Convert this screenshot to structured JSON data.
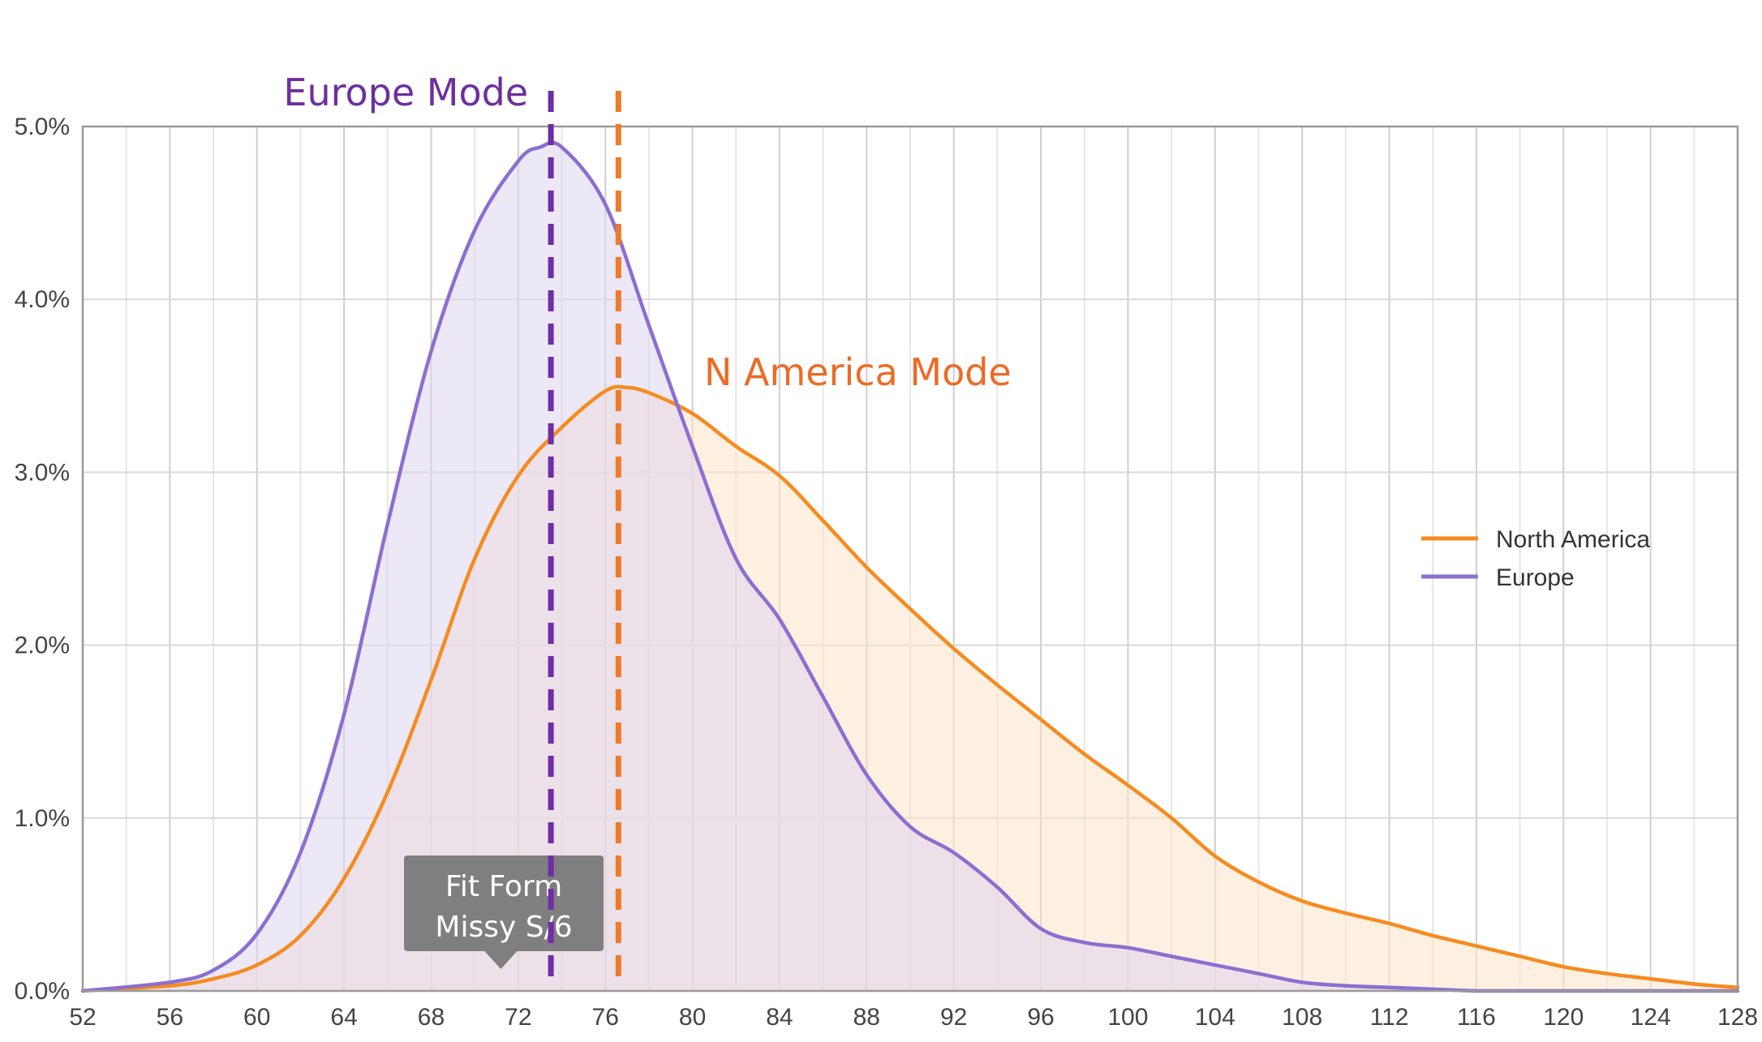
{
  "chart_data": {
    "type": "area",
    "title": "",
    "xlabel": "",
    "ylabel": "",
    "xlim": [
      52,
      128
    ],
    "ylim": [
      0,
      5
    ],
    "x_ticks": [
      52,
      56,
      60,
      64,
      68,
      72,
      76,
      80,
      84,
      88,
      92,
      96,
      100,
      104,
      108,
      112,
      116,
      120,
      124,
      128
    ],
    "x_tick_labels": [
      "52",
      "56",
      "60",
      "64",
      "68",
      "72",
      "76",
      "80",
      "84",
      "88",
      "92",
      "96",
      "100",
      "104",
      "108",
      "112",
      "116",
      "120",
      "124",
      "128"
    ],
    "y_ticks": [
      0,
      1,
      2,
      3,
      4,
      5
    ],
    "y_tick_labels": [
      "0.0%",
      "1.0%",
      "2.0%",
      "3.0%",
      "4.0%",
      "5.0%"
    ],
    "x_minor_step": 2,
    "grid": true,
    "legend_position": "right",
    "series": [
      {
        "name": "North America",
        "color": "#f68b1f",
        "fill": "#fde3c8",
        "x": [
          52,
          56,
          58,
          60,
          62,
          64,
          66,
          68,
          70,
          72,
          74,
          76,
          77,
          78,
          80,
          82,
          84,
          86,
          88,
          90,
          92,
          94,
          96,
          98,
          100,
          102,
          104,
          106,
          108,
          110,
          112,
          114,
          116,
          118,
          120,
          122,
          124,
          126,
          128
        ],
        "values": [
          0,
          0.03,
          0.07,
          0.15,
          0.32,
          0.65,
          1.15,
          1.8,
          2.5,
          2.98,
          3.26,
          3.47,
          3.49,
          3.46,
          3.34,
          3.15,
          2.98,
          2.72,
          2.45,
          2.21,
          1.98,
          1.77,
          1.57,
          1.37,
          1.19,
          1.0,
          0.78,
          0.63,
          0.52,
          0.45,
          0.39,
          0.32,
          0.26,
          0.2,
          0.14,
          0.1,
          0.07,
          0.04,
          0.02
        ]
      },
      {
        "name": "Europe",
        "color": "#8b6fd0",
        "fill": "#ddd5ef",
        "x": [
          52,
          56,
          58,
          60,
          62,
          64,
          66,
          68,
          70,
          72,
          73,
          74,
          76,
          78,
          80,
          82,
          84,
          86,
          88,
          90,
          92,
          94,
          96,
          98,
          100,
          102,
          104,
          106,
          108,
          110,
          112,
          114,
          116,
          118,
          120,
          124,
          128
        ],
        "values": [
          0,
          0.05,
          0.12,
          0.33,
          0.8,
          1.6,
          2.7,
          3.7,
          4.4,
          4.8,
          4.88,
          4.88,
          4.55,
          3.85,
          3.15,
          2.5,
          2.15,
          1.7,
          1.25,
          0.95,
          0.8,
          0.6,
          0.36,
          0.28,
          0.25,
          0.2,
          0.15,
          0.1,
          0.05,
          0.03,
          0.02,
          0.01,
          0.0,
          0.0,
          0.0,
          0.0,
          0.0
        ]
      }
    ],
    "annotations": [
      {
        "id": "europe-mode",
        "label": "Europe Mode",
        "x": 73.5,
        "color": "#6d2f9e",
        "line_color": "#6f2da8"
      },
      {
        "id": "na-mode",
        "label": "N America Mode",
        "x": 76.6,
        "color": "#ec6b26",
        "line_color": "#ee7a2a"
      }
    ],
    "callout": {
      "lines": [
        "Fit Form",
        "Missy S/6"
      ],
      "x": 71.2,
      "bg_color": "#7f7f7f"
    }
  }
}
